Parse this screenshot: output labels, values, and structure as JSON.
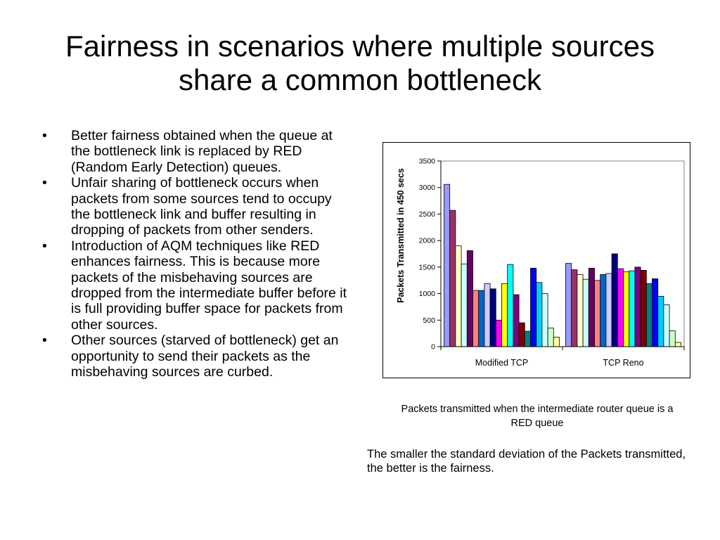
{
  "slide": {
    "title": "Fairness in scenarios where multiple sources share a common bottleneck",
    "bullets": [
      "Better fairness obtained when the queue at the bottleneck link is replaced by RED (Random Early Detection) queues.",
      "Unfair sharing of bottleneck occurs when packets from some sources tend to occupy the bottleneck link and buffer resulting in dropping of packets from other senders.",
      "Introduction of AQM techniques like RED enhances fairness. This is because more packets of the misbehaving sources are dropped from the intermediate buffer before it is full providing buffer space for packets from other sources.",
      "Other sources (starved of bottleneck) get an opportunity to send their packets as the misbehaving sources are curbed."
    ],
    "caption": "Packets transmitted when the intermediate router queue is a RED queue",
    "note": "The smaller the standard deviation of the Packets transmitted, the better is the fairness."
  },
  "chart_data": {
    "type": "bar",
    "title": "",
    "xlabel": "",
    "ylabel": "Packets Transmitted in 450 secs",
    "ylim": [
      0,
      3500
    ],
    "yticks": [
      0,
      500,
      1000,
      1500,
      2000,
      2500,
      3000,
      3500
    ],
    "grid": false,
    "legend": "none",
    "categories": [
      "Modified TCP",
      "TCP Reno"
    ],
    "series_colors": [
      "#9999ff",
      "#993366",
      "#ffffcc",
      "#ccffff",
      "#660066",
      "#ff8080",
      "#0066cc",
      "#ccccff",
      "#000080",
      "#ff00ff",
      "#ffff00",
      "#00ffff",
      "#800080",
      "#800000",
      "#008080",
      "#0000ff",
      "#00ccff",
      "#ccffff",
      "#ccffcc",
      "#ffff99"
    ],
    "series": [
      {
        "values": [
          3060,
          1570
        ]
      },
      {
        "values": [
          2570,
          1450
        ]
      },
      {
        "values": [
          1900,
          1360
        ]
      },
      {
        "values": [
          1560,
          1270
        ]
      },
      {
        "values": [
          1810,
          1480
        ]
      },
      {
        "values": [
          1060,
          1250
        ]
      },
      {
        "values": [
          1060,
          1360
        ]
      },
      {
        "values": [
          1190,
          1380
        ]
      },
      {
        "values": [
          1090,
          1750
        ]
      },
      {
        "values": [
          500,
          1470
        ]
      },
      {
        "values": [
          1190,
          1410
        ]
      },
      {
        "values": [
          1550,
          1430
        ]
      },
      {
        "values": [
          980,
          1500
        ]
      },
      {
        "values": [
          450,
          1440
        ]
      },
      {
        "values": [
          290,
          1190
        ]
      },
      {
        "values": [
          1480,
          1280
        ]
      },
      {
        "values": [
          1210,
          950
        ]
      },
      {
        "values": [
          1000,
          790
        ]
      },
      {
        "values": [
          350,
          300
        ]
      },
      {
        "values": [
          180,
          80
        ]
      }
    ]
  }
}
